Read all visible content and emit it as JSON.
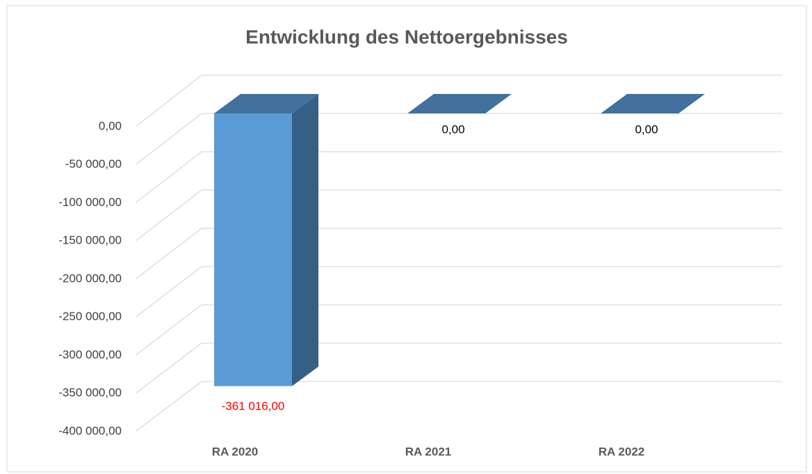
{
  "chart_data": {
    "type": "bar3d",
    "title": "Entwicklung des Nettoergebnisses",
    "categories": [
      "RA 2020",
      "RA 2021",
      "RA 2022"
    ],
    "values": [
      -361016,
      0,
      0
    ],
    "value_labels": [
      "-361 016,00",
      "0,00",
      "0,00"
    ],
    "color": "#5b9bd5",
    "ylim": [
      -400000,
      0
    ],
    "yticks": [
      {
        "value": 0,
        "label": "0,00"
      },
      {
        "value": -50000,
        "label": "-50 000,00"
      },
      {
        "value": -100000,
        "label": "-100 000,00"
      },
      {
        "value": -150000,
        "label": "-150 000,00"
      },
      {
        "value": -200000,
        "label": "-200 000,00"
      },
      {
        "value": -250000,
        "label": "-250 000,00"
      },
      {
        "value": -300000,
        "label": "-300 000,00"
      },
      {
        "value": -350000,
        "label": "-350 000,00"
      },
      {
        "value": -400000,
        "label": "-400 000,00"
      }
    ],
    "grid": true
  }
}
